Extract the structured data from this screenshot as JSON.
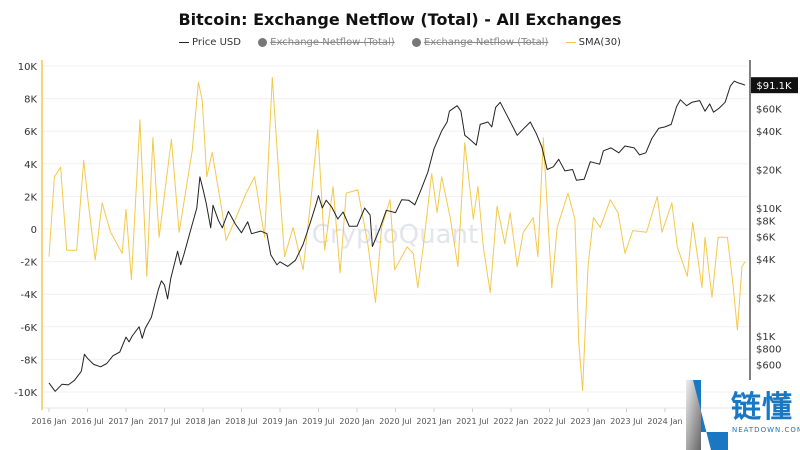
{
  "chart_data": {
    "type": "line",
    "title": "Bitcoin: Exchange Netflow (Total) - All Exchanges",
    "legend": [
      {
        "label": "Price USD",
        "color": "#222222",
        "hidden": false
      },
      {
        "label": "Exchange Netflow (Total)",
        "color": "#777777",
        "hidden": true
      },
      {
        "label": "Exchange Netflow (Total)",
        "color": "#777777",
        "hidden": true
      },
      {
        "label": "SMA(30)",
        "color": "#f2c94c",
        "hidden": false
      }
    ],
    "legend_position": "top",
    "watermark": "CryptoQuant",
    "x_ticks": [
      "2016 Jan",
      "2016 Jul",
      "2017 Jan",
      "2017 Jul",
      "2018 Jan",
      "2018 Jul",
      "2019 Jan",
      "2019 Jul",
      "2020 Jan",
      "2020 Jul",
      "2021 Jan",
      "2021 Jul",
      "2022 Jan",
      "2022 Jul",
      "2023 Jan",
      "2023 Jul",
      "2024 Jan"
    ],
    "xlim": [
      2015.9,
      2025.08
    ],
    "left_axis": {
      "ticks": [
        "10K",
        "8K",
        "6K",
        "4K",
        "2K",
        "0",
        "-2K",
        "-4K",
        "-6K",
        "-8K",
        "-10K"
      ],
      "ylim": [
        -10000,
        10000
      ]
    },
    "right_axis": {
      "scale": "log",
      "ticks": [
        [
          "$60K",
          60000
        ],
        [
          "$40K",
          40000
        ],
        [
          "$20K",
          20000
        ],
        [
          "$10K",
          10000
        ],
        [
          "$8K",
          8000
        ],
        [
          "$6K",
          6000
        ],
        [
          "$4K",
          4000
        ],
        [
          "$2K",
          2000
        ],
        [
          "$1K",
          1000
        ],
        [
          "$800",
          800
        ],
        [
          "$600",
          600
        ]
      ],
      "current_label": "$91.1K",
      "current_value": 91100
    },
    "grid": true,
    "series": [
      {
        "name": "SMA(30)",
        "axis": "left",
        "color": "#f2c94c",
        "points": [
          [
            2016.0,
            -1700
          ],
          [
            2016.07,
            3200
          ],
          [
            2016.15,
            3800
          ],
          [
            2016.23,
            -1300
          ],
          [
            2016.36,
            -1300
          ],
          [
            2016.45,
            4200
          ],
          [
            2016.51,
            1600
          ],
          [
            2016.6,
            -1900
          ],
          [
            2016.69,
            1600
          ],
          [
            2016.8,
            -200
          ],
          [
            2016.95,
            -1500
          ],
          [
            2017.0,
            1200
          ],
          [
            2017.07,
            -3100
          ],
          [
            2017.18,
            6700
          ],
          [
            2017.27,
            -2900
          ],
          [
            2017.35,
            5600
          ],
          [
            2017.43,
            -500
          ],
          [
            2017.59,
            5500
          ],
          [
            2017.69,
            -200
          ],
          [
            2017.86,
            4800
          ],
          [
            2017.94,
            9000
          ],
          [
            2017.99,
            7900
          ],
          [
            2018.05,
            3200
          ],
          [
            2018.12,
            4700
          ],
          [
            2018.25,
            1000
          ],
          [
            2018.3,
            -700
          ],
          [
            2018.43,
            700
          ],
          [
            2018.56,
            2200
          ],
          [
            2018.67,
            3200
          ],
          [
            2018.8,
            -500
          ],
          [
            2018.9,
            9300
          ],
          [
            2019.0,
            2200
          ],
          [
            2019.06,
            -1700
          ],
          [
            2019.17,
            100
          ],
          [
            2019.3,
            -2500
          ],
          [
            2019.41,
            2200
          ],
          [
            2019.49,
            6100
          ],
          [
            2019.58,
            -1300
          ],
          [
            2019.69,
            2600
          ],
          [
            2019.78,
            -2700
          ],
          [
            2019.86,
            2200
          ],
          [
            2020.01,
            2400
          ],
          [
            2020.14,
            -900
          ],
          [
            2020.24,
            -4500
          ],
          [
            2020.32,
            100
          ],
          [
            2020.43,
            1800
          ],
          [
            2020.49,
            -2500
          ],
          [
            2020.65,
            -1100
          ],
          [
            2020.73,
            -1500
          ],
          [
            2020.79,
            -3600
          ],
          [
            2020.86,
            -1100
          ],
          [
            2020.97,
            3400
          ],
          [
            2021.04,
            1000
          ],
          [
            2021.1,
            3200
          ],
          [
            2021.21,
            700
          ],
          [
            2021.31,
            -2300
          ],
          [
            2021.4,
            5300
          ],
          [
            2021.51,
            600
          ],
          [
            2021.57,
            2600
          ],
          [
            2021.64,
            -1100
          ],
          [
            2021.73,
            -3900
          ],
          [
            2021.82,
            1400
          ],
          [
            2021.92,
            -900
          ],
          [
            2021.99,
            1000
          ],
          [
            2022.08,
            -2300
          ],
          [
            2022.16,
            -200
          ],
          [
            2022.29,
            700
          ],
          [
            2022.35,
            -1700
          ],
          [
            2022.42,
            5600
          ],
          [
            2022.53,
            -3600
          ],
          [
            2022.6,
            100
          ],
          [
            2022.74,
            2200
          ],
          [
            2022.83,
            600
          ],
          [
            2022.88,
            -7000
          ],
          [
            2022.93,
            -9900
          ],
          [
            2023.0,
            -2300
          ],
          [
            2023.07,
            700
          ],
          [
            2023.16,
            100
          ],
          [
            2023.29,
            1800
          ],
          [
            2023.39,
            1000
          ],
          [
            2023.48,
            -1500
          ],
          [
            2023.58,
            -100
          ],
          [
            2023.76,
            -200
          ],
          [
            2023.9,
            2000
          ],
          [
            2023.96,
            -200
          ],
          [
            2024.09,
            1600
          ],
          [
            2024.16,
            -1100
          ],
          [
            2024.29,
            -2900
          ],
          [
            2024.36,
            400
          ],
          [
            2024.48,
            -3600
          ],
          [
            2024.52,
            -500
          ],
          [
            2024.61,
            -4200
          ],
          [
            2024.69,
            -500
          ],
          [
            2024.81,
            -500
          ],
          [
            2024.88,
            -3300
          ],
          [
            2024.94,
            -6200
          ],
          [
            2025.0,
            -2300
          ],
          [
            2025.04,
            -2000
          ]
        ]
      },
      {
        "name": "Price USD",
        "axis": "right",
        "color": "#222222",
        "points": [
          [
            2016.0,
            430
          ],
          [
            2016.08,
            370
          ],
          [
            2016.17,
            420
          ],
          [
            2016.25,
            415
          ],
          [
            2016.33,
            450
          ],
          [
            2016.42,
            530
          ],
          [
            2016.46,
            720
          ],
          [
            2016.5,
            670
          ],
          [
            2016.58,
            600
          ],
          [
            2016.67,
            575
          ],
          [
            2016.75,
            610
          ],
          [
            2016.83,
            700
          ],
          [
            2016.92,
            750
          ],
          [
            2017.0,
            980
          ],
          [
            2017.04,
            900
          ],
          [
            2017.08,
            1000
          ],
          [
            2017.17,
            1180
          ],
          [
            2017.21,
            960
          ],
          [
            2017.25,
            1150
          ],
          [
            2017.33,
            1400
          ],
          [
            2017.42,
            2300
          ],
          [
            2017.46,
            2700
          ],
          [
            2017.5,
            2500
          ],
          [
            2017.54,
            1950
          ],
          [
            2017.58,
            2800
          ],
          [
            2017.67,
            4600
          ],
          [
            2017.71,
            3600
          ],
          [
            2017.75,
            4300
          ],
          [
            2017.83,
            6400
          ],
          [
            2017.92,
            10000
          ],
          [
            2017.96,
            17500
          ],
          [
            2018.0,
            14000
          ],
          [
            2018.04,
            11000
          ],
          [
            2018.1,
            7000
          ],
          [
            2018.13,
            10500
          ],
          [
            2018.2,
            8000
          ],
          [
            2018.25,
            7000
          ],
          [
            2018.33,
            9400
          ],
          [
            2018.42,
            7500
          ],
          [
            2018.5,
            6400
          ],
          [
            2018.58,
            7800
          ],
          [
            2018.63,
            6300
          ],
          [
            2018.75,
            6600
          ],
          [
            2018.83,
            6300
          ],
          [
            2018.88,
            4300
          ],
          [
            2018.96,
            3600
          ],
          [
            2019.0,
            3800
          ],
          [
            2019.1,
            3500
          ],
          [
            2019.2,
            3900
          ],
          [
            2019.3,
            5200
          ],
          [
            2019.4,
            7900
          ],
          [
            2019.47,
            10800
          ],
          [
            2019.5,
            12500
          ],
          [
            2019.55,
            10000
          ],
          [
            2019.6,
            11500
          ],
          [
            2019.67,
            10200
          ],
          [
            2019.75,
            8200
          ],
          [
            2019.82,
            9300
          ],
          [
            2019.9,
            7200
          ],
          [
            2020.0,
            7200
          ],
          [
            2020.1,
            10000
          ],
          [
            2020.17,
            8800
          ],
          [
            2020.2,
            5000
          ],
          [
            2020.3,
            7000
          ],
          [
            2020.38,
            9600
          ],
          [
            2020.5,
            9200
          ],
          [
            2020.58,
            11600
          ],
          [
            2020.67,
            11500
          ],
          [
            2020.75,
            10600
          ],
          [
            2020.83,
            13800
          ],
          [
            2020.92,
            19000
          ],
          [
            2021.0,
            29000
          ],
          [
            2021.1,
            40000
          ],
          [
            2021.17,
            47000
          ],
          [
            2021.2,
            57000
          ],
          [
            2021.3,
            63000
          ],
          [
            2021.35,
            57000
          ],
          [
            2021.4,
            37000
          ],
          [
            2021.45,
            35000
          ],
          [
            2021.55,
            31000
          ],
          [
            2021.6,
            45000
          ],
          [
            2021.7,
            47000
          ],
          [
            2021.75,
            43000
          ],
          [
            2021.8,
            61000
          ],
          [
            2021.86,
            67000
          ],
          [
            2021.92,
            57000
          ],
          [
            2022.0,
            46000
          ],
          [
            2022.08,
            37000
          ],
          [
            2022.17,
            42000
          ],
          [
            2022.25,
            47000
          ],
          [
            2022.33,
            38000
          ],
          [
            2022.4,
            30000
          ],
          [
            2022.47,
            20000
          ],
          [
            2022.55,
            21000
          ],
          [
            2022.62,
            24000
          ],
          [
            2022.7,
            19500
          ],
          [
            2022.8,
            20000
          ],
          [
            2022.85,
            16500
          ],
          [
            2022.95,
            16800
          ],
          [
            2023.03,
            23000
          ],
          [
            2023.15,
            22000
          ],
          [
            2023.2,
            28000
          ],
          [
            2023.3,
            29500
          ],
          [
            2023.4,
            27000
          ],
          [
            2023.48,
            30500
          ],
          [
            2023.6,
            29500
          ],
          [
            2023.67,
            26000
          ],
          [
            2023.75,
            27000
          ],
          [
            2023.83,
            35000
          ],
          [
            2023.92,
            42000
          ],
          [
            2024.0,
            43000
          ],
          [
            2024.08,
            45000
          ],
          [
            2024.15,
            62000
          ],
          [
            2024.2,
            70000
          ],
          [
            2024.28,
            63000
          ],
          [
            2024.35,
            67000
          ],
          [
            2024.45,
            69000
          ],
          [
            2024.52,
            57000
          ],
          [
            2024.58,
            65000
          ],
          [
            2024.63,
            56000
          ],
          [
            2024.7,
            60000
          ],
          [
            2024.78,
            67000
          ],
          [
            2024.85,
            90000
          ],
          [
            2024.9,
            98000
          ],
          [
            2024.95,
            95000
          ],
          [
            2025.0,
            93000
          ],
          [
            2025.04,
            91100
          ]
        ]
      }
    ]
  },
  "logo": {
    "cn": "链懂",
    "en": "NEATDOWN.COM"
  }
}
